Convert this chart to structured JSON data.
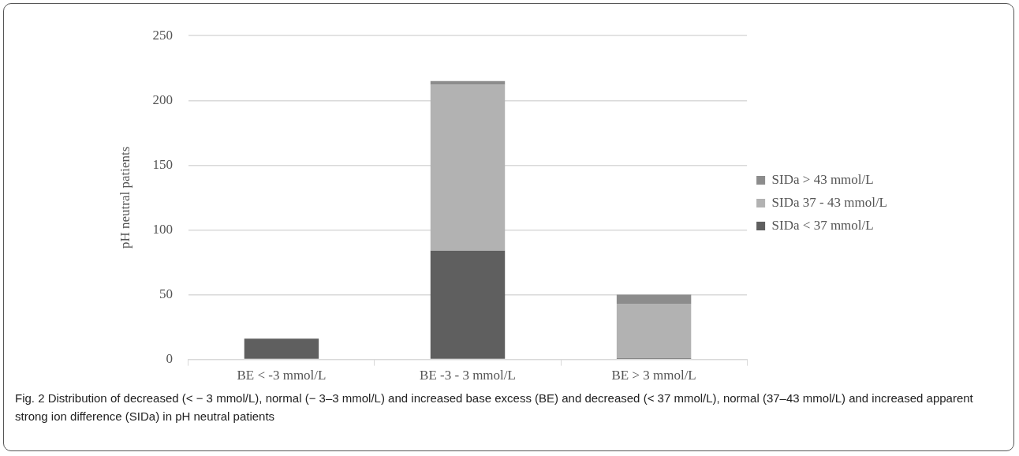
{
  "chart_data": {
    "type": "bar",
    "stacked": true,
    "categories": [
      "BE < -3 mmol/L",
      "BE -3 - 3 mmol/L",
      "BE > 3 mmol/L"
    ],
    "series": [
      {
        "name": "SIDa < 37 mmol/L",
        "color": "#5f5f5f",
        "values": [
          16,
          84,
          1
        ]
      },
      {
        "name": "SIDa 37 - 43 mmol/L",
        "color": "#b2b2b2",
        "values": [
          0,
          128,
          42
        ]
      },
      {
        "name": "SIDa > 43 mmol/L",
        "color": "#8c8c8c",
        "values": [
          0,
          3,
          7
        ]
      }
    ],
    "ylabel": "pH neutral patients",
    "ylim": [
      0,
      250
    ],
    "yticks": [
      0,
      50,
      100,
      150,
      200,
      250
    ],
    "grid": "y",
    "legend": "right",
    "annotations": [
      "Fig. 2 Distribution of decreased (< − 3 mmol/L), normal (− 3–3 mmol/L) and increased base excess (BE) and decreased (< 37 mmol/L), normal (37–43 mmol/L) and increased apparent strong ion difference (SIDa) in pH neutral patients"
    ]
  }
}
